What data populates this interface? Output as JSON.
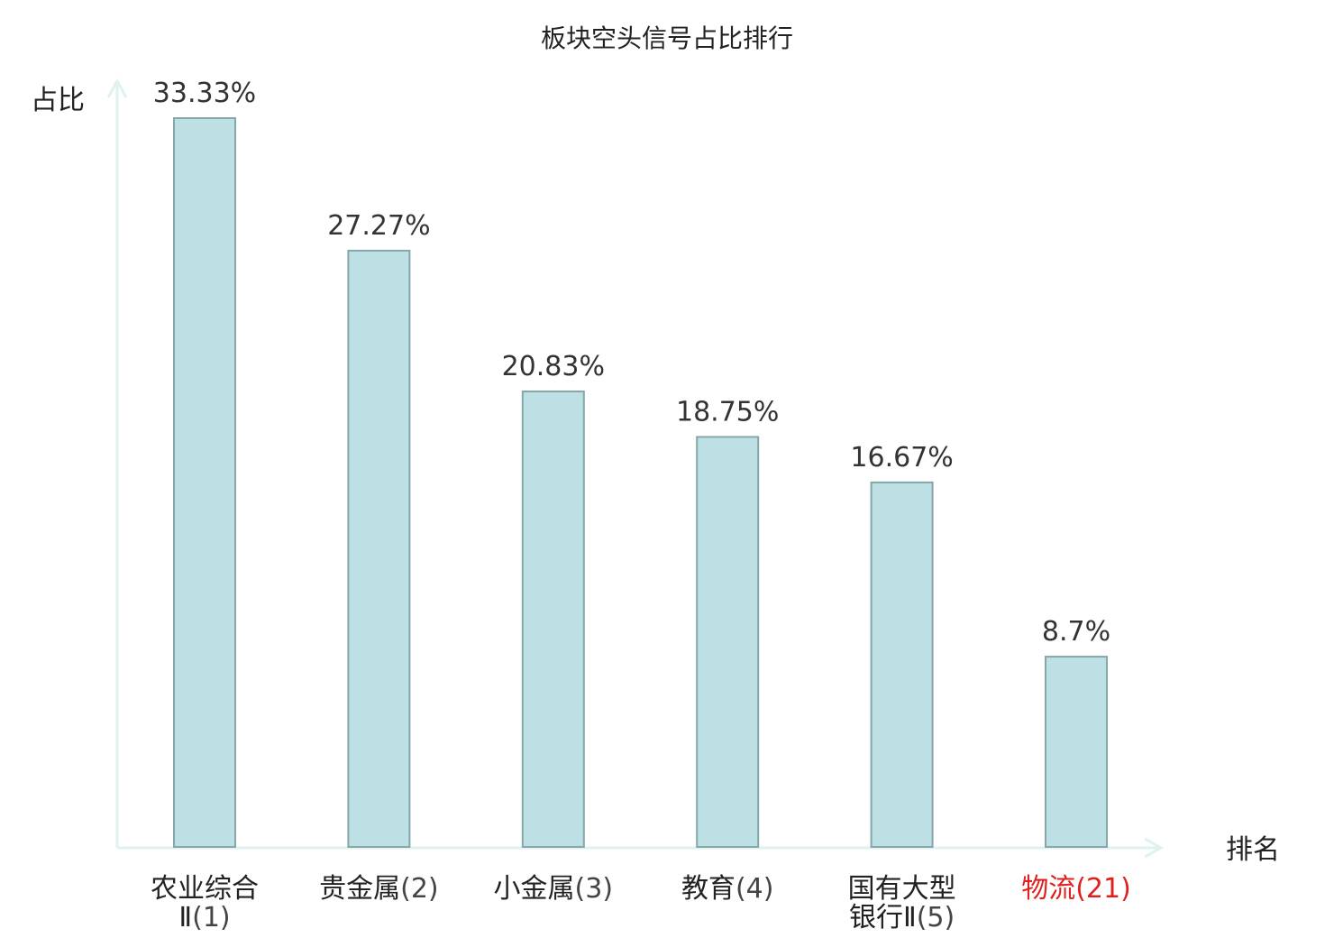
{
  "chart_data": {
    "type": "bar",
    "title": "板块空头信号占比排行",
    "xlabel": "排名",
    "ylabel": "占比",
    "categories": [
      {
        "name_lines": [
          "农业综合",
          "Ⅱ"
        ],
        "rank": "(1)"
      },
      {
        "name_lines": [
          "贵金属"
        ],
        "rank": "(2)"
      },
      {
        "name_lines": [
          "小金属"
        ],
        "rank": "(3)"
      },
      {
        "name_lines": [
          "教育"
        ],
        "rank": "(4)"
      },
      {
        "name_lines": [
          "国有大型",
          "银行Ⅱ"
        ],
        "rank": "(5)"
      },
      {
        "name_lines": [
          "物流"
        ],
        "rank": "(21)",
        "highlight": true
      }
    ],
    "values": [
      33.33,
      27.27,
      20.83,
      18.75,
      16.67,
      8.7
    ],
    "value_labels": [
      "33.33%",
      "27.27%",
      "20.83%",
      "18.75%",
      "16.67%",
      "8.7%"
    ],
    "ylim": [
      0,
      33.33
    ],
    "grid": false,
    "legend": "none"
  },
  "colors": {
    "bar_fill": "#bce0e3",
    "bar_stroke": "#86a6a8",
    "axis": "#dff2f0",
    "text": "#222222",
    "rank_text": "#444444",
    "highlight": "#e0201e"
  }
}
